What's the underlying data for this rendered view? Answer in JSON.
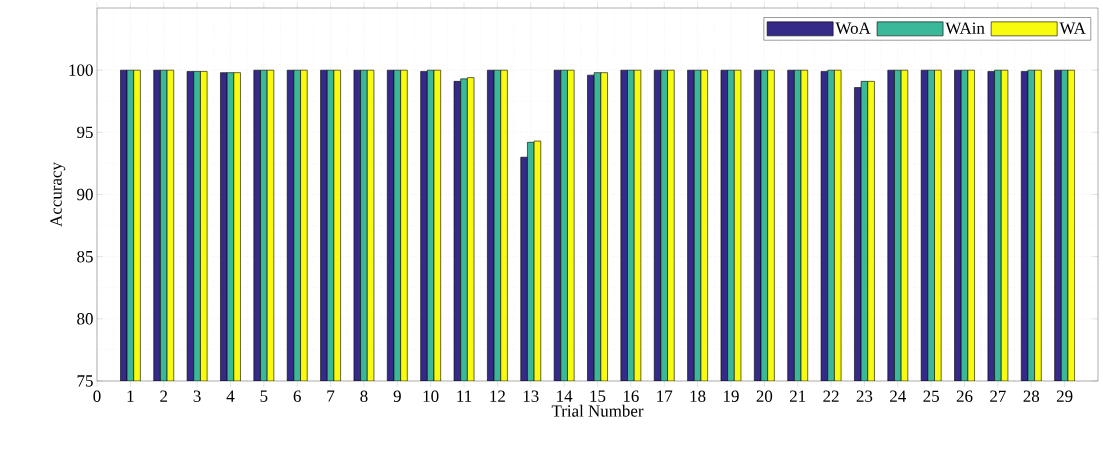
{
  "chart_data": {
    "type": "bar",
    "xlabel": "Trial Number",
    "ylabel": "Accuracy",
    "x": [
      1,
      2,
      3,
      4,
      5,
      6,
      7,
      8,
      9,
      10,
      11,
      12,
      13,
      14,
      15,
      16,
      17,
      18,
      19,
      20,
      21,
      22,
      23,
      24,
      25,
      26,
      27,
      28,
      29
    ],
    "series": [
      {
        "name": "WoA",
        "color": "#352a87",
        "values": [
          100,
          100,
          99.9,
          99.8,
          100,
          100,
          100,
          100,
          100,
          99.9,
          99.1,
          100,
          93.0,
          100,
          99.6,
          100,
          100,
          100,
          100,
          100,
          100,
          99.9,
          98.6,
          100,
          100,
          100,
          99.9,
          99.9,
          100
        ]
      },
      {
        "name": "WAin",
        "color": "#3bb89a",
        "values": [
          100,
          100,
          99.9,
          99.8,
          100,
          100,
          100,
          100,
          100,
          100,
          99.3,
          100,
          94.2,
          100,
          99.8,
          100,
          100,
          100,
          100,
          100,
          100,
          100,
          99.1,
          100,
          100,
          100,
          100,
          100,
          100
        ]
      },
      {
        "name": "WA",
        "color": "#f9fb0e",
        "values": [
          100,
          100,
          99.9,
          99.8,
          100,
          100,
          100,
          100,
          100,
          100,
          99.4,
          100,
          94.3,
          100,
          99.8,
          100,
          100,
          100,
          100,
          100,
          100,
          100,
          99.1,
          100,
          100,
          100,
          100,
          100,
          100
        ]
      }
    ],
    "xlim": [
      0,
      30
    ],
    "xticks": [
      0,
      1,
      2,
      3,
      4,
      5,
      6,
      7,
      8,
      9,
      10,
      11,
      12,
      13,
      14,
      15,
      16,
      17,
      18,
      19,
      20,
      21,
      22,
      23,
      24,
      25,
      26,
      27,
      28,
      29
    ],
    "ylim": [
      75,
      105
    ],
    "yticks": [
      75,
      80,
      85,
      90,
      95,
      100
    ],
    "grid": true,
    "legend": "top right"
  }
}
